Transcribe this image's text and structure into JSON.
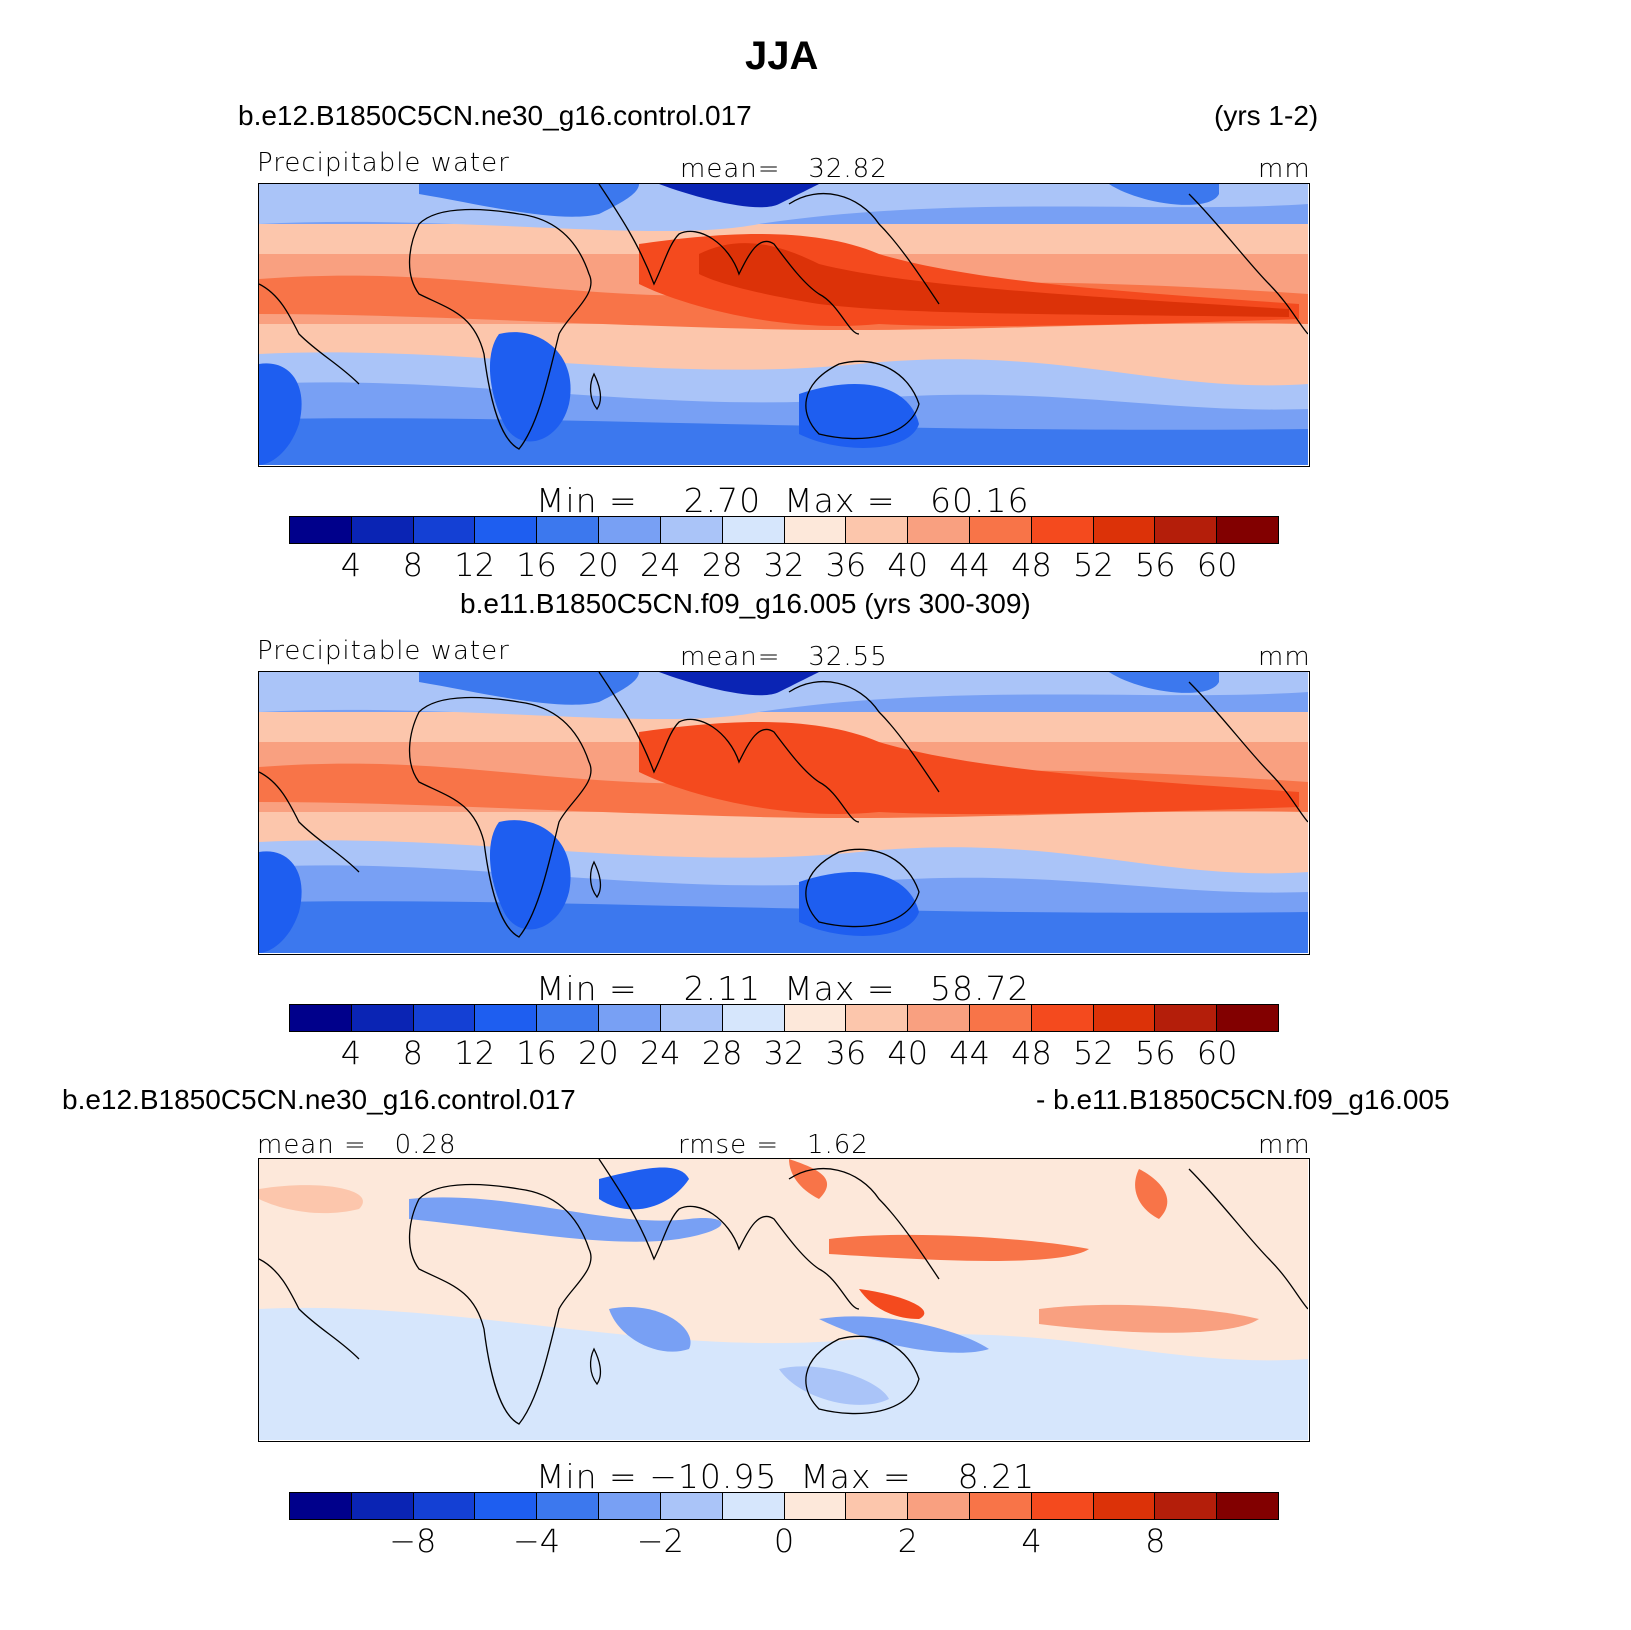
{
  "title": "JJA",
  "panels": [
    {
      "case_left": "b.e12.B1850C5CN.ne30_g16.control.017",
      "case_right": "(yrs 1-2)",
      "var_label": "Precipitable water",
      "stat_label": "mean=",
      "stat_value": "32.82",
      "units": "mm",
      "min_label": "Min  =",
      "min_value": "2.70",
      "max_label": "Max  =",
      "max_value": "60.16",
      "ticks": [
        "4",
        "8",
        "12",
        "16",
        "20",
        "24",
        "28",
        "32",
        "36",
        "40",
        "44",
        "48",
        "52",
        "56",
        "60"
      ]
    },
    {
      "case_center": "b.e11.B1850C5CN.f09_g16.005 (yrs 300-309)",
      "var_label": "Precipitable water",
      "stat_label": "mean=",
      "stat_value": "32.55",
      "units": "mm",
      "min_label": "Min  =",
      "min_value": "2.11",
      "max_label": "Max  =",
      "max_value": "58.72",
      "ticks": [
        "4",
        "8",
        "12",
        "16",
        "20",
        "24",
        "28",
        "32",
        "36",
        "40",
        "44",
        "48",
        "52",
        "56",
        "60"
      ]
    },
    {
      "case_left": "b.e12.B1850C5CN.ne30_g16.control.017",
      "case_right": "- b.e11.B1850C5CN.f09_g16.005",
      "mean_label": "mean =",
      "mean_value": "0.28",
      "rmse_label": "rmse =",
      "rmse_value": "1.62",
      "units": "mm",
      "min_label": "Min  =",
      "min_value": "−10.95",
      "max_label": "Max  =",
      "max_value": "8.21",
      "ticks": [
        "−8",
        "−4",
        "−2",
        "0",
        "2",
        "4",
        "8"
      ]
    }
  ],
  "colors": {
    "palette": [
      "#00008b",
      "#0a24b4",
      "#1440d4",
      "#1e5ef0",
      "#3c78ee",
      "#78a0f4",
      "#aac4f8",
      "#d6e6fc",
      "#fde8da",
      "#fcc6ac",
      "#f9a080",
      "#f87448",
      "#f44a1e",
      "#dc3208",
      "#b41e0a",
      "#820000"
    ]
  }
}
